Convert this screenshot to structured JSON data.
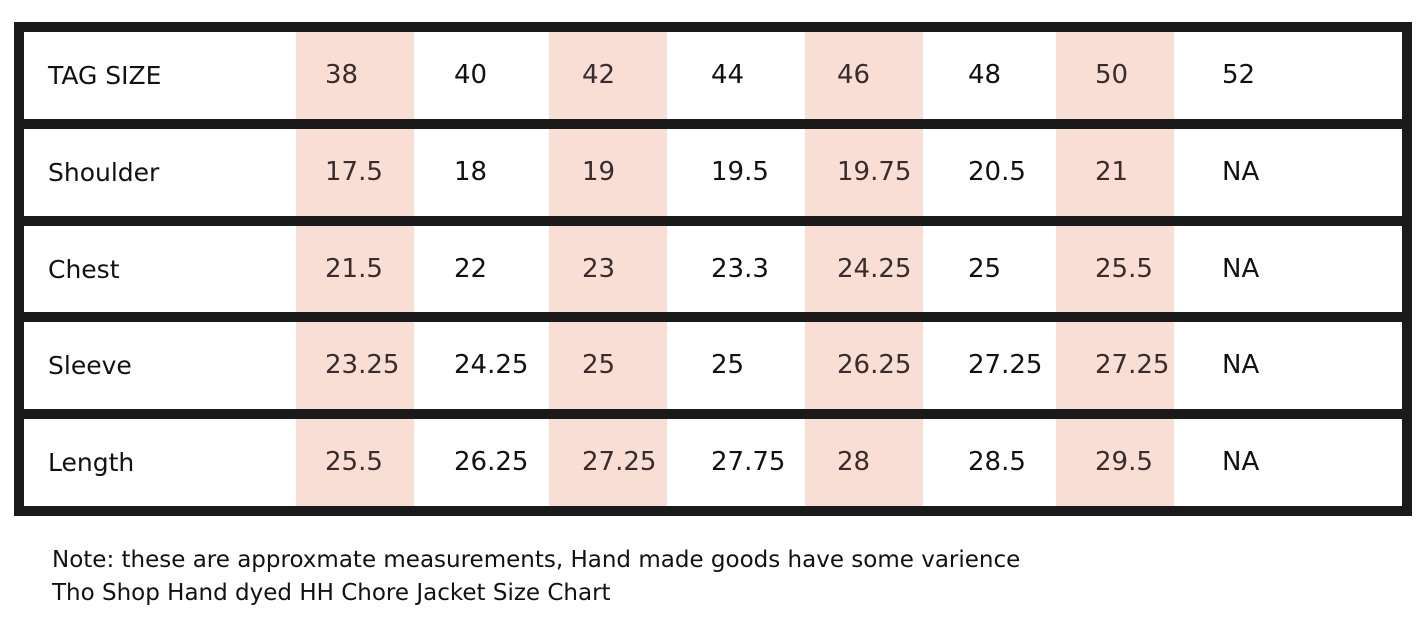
{
  "size_chart": {
    "header_label": "TAG SIZE",
    "sizes": [
      "38",
      "40",
      "42",
      "44",
      "46",
      "48",
      "50",
      "52"
    ],
    "rows": [
      {
        "label": "Shoulder",
        "values": [
          "17.5",
          "18",
          "19",
          "19.5",
          "19.75",
          "20.5",
          "21",
          "NA"
        ]
      },
      {
        "label": "Chest",
        "values": [
          "21.5",
          "22",
          "23",
          "23.3",
          "24.25",
          "25",
          "25.5",
          "NA"
        ]
      },
      {
        "label": "Sleeve",
        "values": [
          "23.25",
          "24.25",
          "25",
          "25",
          "26.25",
          "27.25",
          "27.25",
          "NA"
        ]
      },
      {
        "label": "Length",
        "values": [
          "25.5",
          "26.25",
          "27.25",
          "27.75",
          "28",
          "28.5",
          "29.5",
          "NA"
        ]
      }
    ],
    "highlight_color": "#f8ded5",
    "border_color": "#1a1a1a"
  },
  "notes": {
    "line1": "Note: these are approxmate measurements, Hand made goods have some varience",
    "line2": "Tho Shop Hand dyed HH Chore Jacket Size Chart"
  }
}
